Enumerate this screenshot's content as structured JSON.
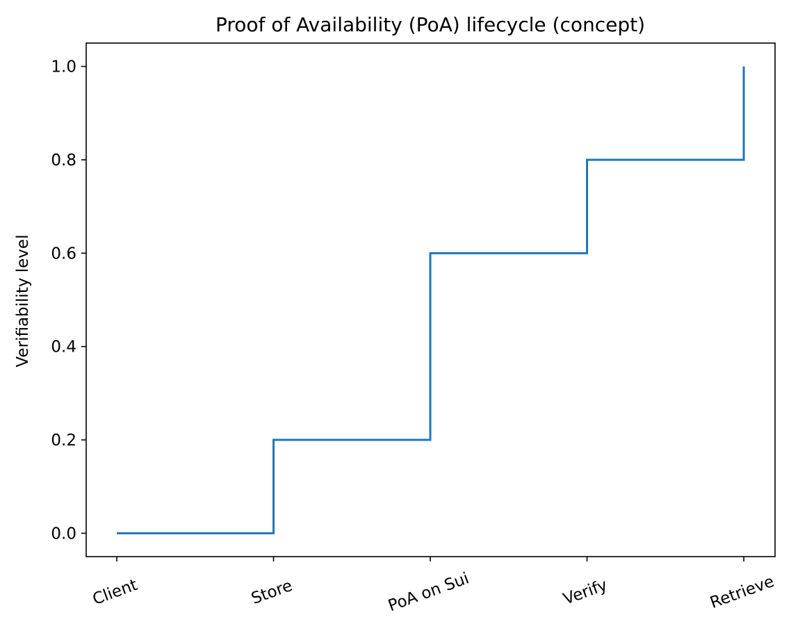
{
  "chart_data": {
    "type": "line",
    "step": "post",
    "title": "Proof of Availability (PoA) lifecycle (concept)",
    "xlabel": "",
    "ylabel": "Verifiability level",
    "categories": [
      "Client",
      "Store",
      "PoA on Sui",
      "Verify",
      "Retrieve"
    ],
    "values": [
      0.0,
      0.2,
      0.6,
      0.8,
      1.0
    ],
    "ylim": [
      -0.05,
      1.05
    ],
    "yticks": [
      0.0,
      0.2,
      0.4,
      0.6,
      0.8,
      1.0
    ],
    "ytick_labels": [
      "0.0",
      "0.2",
      "0.4",
      "0.6",
      "0.8",
      "1.0"
    ],
    "xtick_rotation_deg": 20,
    "grid": false,
    "legend": "none",
    "line_color": "#1f77b4"
  }
}
